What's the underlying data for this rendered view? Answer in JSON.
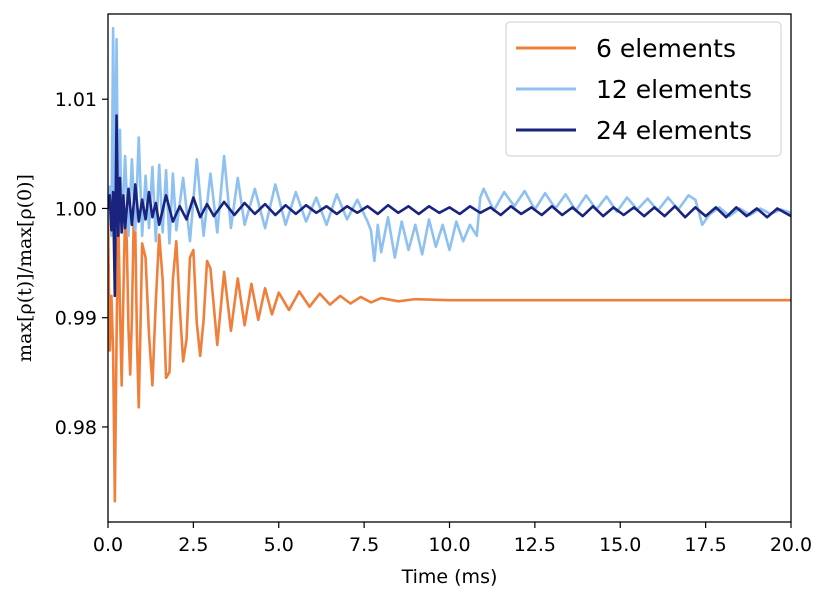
{
  "chart_data": {
    "type": "line",
    "xlabel": "Time (ms)",
    "ylabel": "max[ρ(t)]/max[ρ(0)]",
    "xlim": [
      0,
      20
    ],
    "ylim": [
      0.9713,
      1.0178
    ],
    "x_ticks": [
      "0.0",
      "2.5",
      "5.0",
      "7.5",
      "10.0",
      "12.5",
      "15.0",
      "17.5",
      "20.0"
    ],
    "y_ticks": [
      "0.98",
      "0.99",
      "1.00",
      "1.01"
    ],
    "grid": false,
    "legend_position": "top-right",
    "series": [
      {
        "name": "6 elements",
        "color": "#f07f3c",
        "x": [
          0.0,
          0.05,
          0.1,
          0.15,
          0.2,
          0.25,
          0.3,
          0.35,
          0.4,
          0.45,
          0.5,
          0.55,
          0.6,
          0.65,
          0.7,
          0.75,
          0.8,
          0.85,
          0.9,
          0.95,
          1.0,
          1.1,
          1.2,
          1.3,
          1.4,
          1.5,
          1.6,
          1.7,
          1.8,
          1.9,
          2.0,
          2.1,
          2.2,
          2.3,
          2.4,
          2.5,
          2.6,
          2.7,
          2.8,
          2.9,
          3.0,
          3.2,
          3.4,
          3.6,
          3.8,
          4.0,
          4.2,
          4.4,
          4.6,
          4.8,
          5.0,
          5.3,
          5.6,
          5.9,
          6.2,
          6.5,
          6.8,
          7.1,
          7.4,
          7.7,
          8.0,
          8.5,
          9.0,
          10.0,
          12.0,
          15.0,
          20.0
        ],
        "values": [
          0.9995,
          0.987,
          0.992,
          0.9868,
          0.9732,
          0.988,
          0.9996,
          0.991,
          0.9838,
          0.992,
          0.9996,
          0.997,
          0.989,
          0.9848,
          0.99,
          0.9985,
          0.9978,
          0.9877,
          0.9818,
          0.989,
          0.9968,
          0.9955,
          0.9885,
          0.9838,
          0.9915,
          0.9976,
          0.9935,
          0.9845,
          0.985,
          0.9935,
          0.997,
          0.991,
          0.986,
          0.988,
          0.9955,
          0.9962,
          0.9895,
          0.9865,
          0.9898,
          0.9952,
          0.9945,
          0.9875,
          0.9942,
          0.9888,
          0.9936,
          0.9893,
          0.9931,
          0.9898,
          0.9927,
          0.9903,
          0.9923,
          0.9907,
          0.9924,
          0.991,
          0.9922,
          0.9912,
          0.992,
          0.9913,
          0.9919,
          0.9914,
          0.9918,
          0.9915,
          0.9917,
          0.9916,
          0.9916,
          0.9916,
          0.9916
        ]
      },
      {
        "name": "12 elements",
        "color": "#8ec1f2",
        "x": [
          0.0,
          0.05,
          0.1,
          0.15,
          0.2,
          0.25,
          0.3,
          0.35,
          0.4,
          0.5,
          0.6,
          0.7,
          0.8,
          0.9,
          1.0,
          1.1,
          1.2,
          1.3,
          1.4,
          1.5,
          1.6,
          1.7,
          1.8,
          1.9,
          2.0,
          2.2,
          2.4,
          2.6,
          2.8,
          3.0,
          3.2,
          3.4,
          3.6,
          3.8,
          4.0,
          4.3,
          4.6,
          4.9,
          5.2,
          5.5,
          5.8,
          6.1,
          6.4,
          6.7,
          7.0,
          7.3,
          7.6,
          7.7,
          7.8,
          7.9,
          8.0,
          8.2,
          8.4,
          8.6,
          8.8,
          9.0,
          9.2,
          9.4,
          9.6,
          9.8,
          10.0,
          10.2,
          10.4,
          10.6,
          10.8,
          10.9,
          11.0,
          11.3,
          11.6,
          11.9,
          12.2,
          12.5,
          12.8,
          13.1,
          13.4,
          13.7,
          14.0,
          14.3,
          14.6,
          14.9,
          15.2,
          15.5,
          15.8,
          16.1,
          16.4,
          16.7,
          17.0,
          17.2,
          17.3,
          17.4,
          17.6,
          17.9,
          18.2,
          18.5,
          18.8,
          19.1,
          19.4,
          19.7,
          20.0
        ],
        "values": [
          0.9988,
          1.002,
          0.9975,
          1.0165,
          0.9985,
          1.0155,
          0.9992,
          1.0072,
          0.9978,
          1.0048,
          0.9975,
          1.0045,
          0.998,
          1.0065,
          0.9975,
          1.003,
          0.9982,
          1.0038,
          0.997,
          1.004,
          0.9978,
          1.0035,
          0.9968,
          1.0032,
          0.998,
          1.0028,
          0.997,
          1.0045,
          0.9975,
          1.0032,
          0.9978,
          1.0048,
          0.9982,
          1.0028,
          0.9985,
          1.0018,
          0.9982,
          1.0022,
          0.9985,
          1.0015,
          0.9988,
          1.001,
          0.9985,
          1.0013,
          0.999,
          1.0008,
          0.9988,
          0.998,
          0.9952,
          0.9985,
          0.996,
          0.9992,
          0.9955,
          0.9988,
          0.9962,
          0.9985,
          0.9958,
          0.999,
          0.9965,
          0.9985,
          0.9962,
          0.9988,
          0.997,
          0.9985,
          0.9975,
          1.001,
          1.0018,
          0.9998,
          1.0015,
          1.0002,
          1.0016,
          0.9999,
          1.0014,
          1.0,
          1.0013,
          0.9998,
          1.0012,
          0.9999,
          1.0011,
          0.9997,
          1.001,
          0.9999,
          1.0009,
          0.9998,
          1.001,
          0.9999,
          1.0012,
          1.0008,
          0.9997,
          0.9985,
          0.9994,
          1.0001,
          0.9993,
          1.0,
          0.9994,
          1.0,
          0.9995,
          0.9999,
          0.9996
        ]
      },
      {
        "name": "24 elements",
        "color": "#1a237e",
        "x": [
          0.0,
          0.05,
          0.1,
          0.15,
          0.2,
          0.25,
          0.3,
          0.35,
          0.4,
          0.45,
          0.5,
          0.6,
          0.7,
          0.8,
          0.9,
          1.0,
          1.1,
          1.2,
          1.3,
          1.4,
          1.5,
          1.7,
          1.9,
          2.1,
          2.3,
          2.5,
          2.7,
          2.9,
          3.1,
          3.4,
          3.7,
          4.0,
          4.3,
          4.6,
          4.9,
          5.2,
          5.5,
          5.8,
          6.1,
          6.4,
          6.7,
          7.0,
          7.3,
          7.6,
          7.9,
          8.2,
          8.5,
          8.8,
          9.1,
          9.4,
          9.7,
          10.0,
          10.3,
          10.6,
          10.9,
          11.2,
          11.5,
          11.8,
          12.1,
          12.4,
          12.7,
          13.0,
          13.3,
          13.6,
          13.9,
          14.2,
          14.5,
          14.8,
          15.1,
          15.4,
          15.7,
          16.0,
          16.3,
          16.6,
          16.9,
          17.2,
          17.5,
          17.8,
          18.1,
          18.4,
          18.7,
          19.0,
          19.3,
          19.6,
          20.0
        ],
        "values": [
          1.0,
          1.0012,
          0.998,
          1.0015,
          0.992,
          1.0085,
          0.9975,
          1.0028,
          0.9978,
          1.0012,
          0.9982,
          1.0018,
          0.9985,
          1.0022,
          0.9988,
          1.0008,
          0.999,
          1.0015,
          0.9992,
          1.0005,
          0.9985,
          1.0012,
          0.9988,
          1.0002,
          0.999,
          1.001,
          0.9992,
          1.0004,
          0.9993,
          1.0006,
          0.9994,
          1.0005,
          0.9995,
          1.0004,
          0.9994,
          1.0003,
          0.9995,
          1.0003,
          0.9996,
          1.0002,
          0.9995,
          1.0002,
          0.9996,
          1.0002,
          0.9995,
          1.0003,
          0.9996,
          1.0002,
          0.9995,
          1.0002,
          0.9996,
          1.0001,
          0.9995,
          1.0002,
          0.9996,
          1.0001,
          0.9994,
          1.0002,
          0.9995,
          1.0001,
          0.9994,
          1.0002,
          0.9994,
          1.0001,
          0.9993,
          1.0002,
          0.9993,
          1.0001,
          0.9994,
          1.0001,
          0.9993,
          1.0001,
          0.9993,
          1.0002,
          0.9992,
          1.0001,
          0.9993,
          1.0001,
          0.9992,
          1.0001,
          0.9993,
          1.0,
          0.9992,
          1.0,
          0.9993
        ]
      }
    ]
  }
}
